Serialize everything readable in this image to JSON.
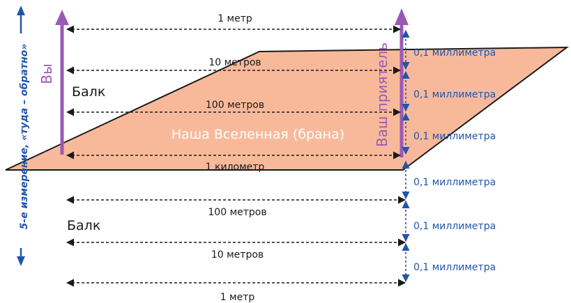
{
  "colors": {
    "brane_fill": "#f8b99b",
    "brane_stroke": "#1a1a1a",
    "purple": "#9b59b6",
    "blue": "#2255aa",
    "black": "#1a1a1a"
  },
  "labels": {
    "fifth_dimension": "5-е измерение, «туда – обратно»",
    "you": "Вы",
    "friend": "Ваш приятель",
    "brane": "Наша Вселенная (брана)",
    "bulk_top": "Балк",
    "bulk_bottom": "Балк"
  },
  "horizontal": [
    {
      "label": "1 метр"
    },
    {
      "label": "10 метров"
    },
    {
      "label": "100 метров"
    },
    {
      "label": "1 километр"
    },
    {
      "label": "100 метров"
    },
    {
      "label": "10 метров"
    },
    {
      "label": "1 метр"
    }
  ],
  "vertical": [
    {
      "label": "0,1 миллиметра"
    },
    {
      "label": "0,1 миллиметра"
    },
    {
      "label": "0,1 миллиметра"
    },
    {
      "label": "0,1 миллиметра"
    },
    {
      "label": "0,1 миллиметра"
    },
    {
      "label": "0,1 миллиметра"
    }
  ]
}
